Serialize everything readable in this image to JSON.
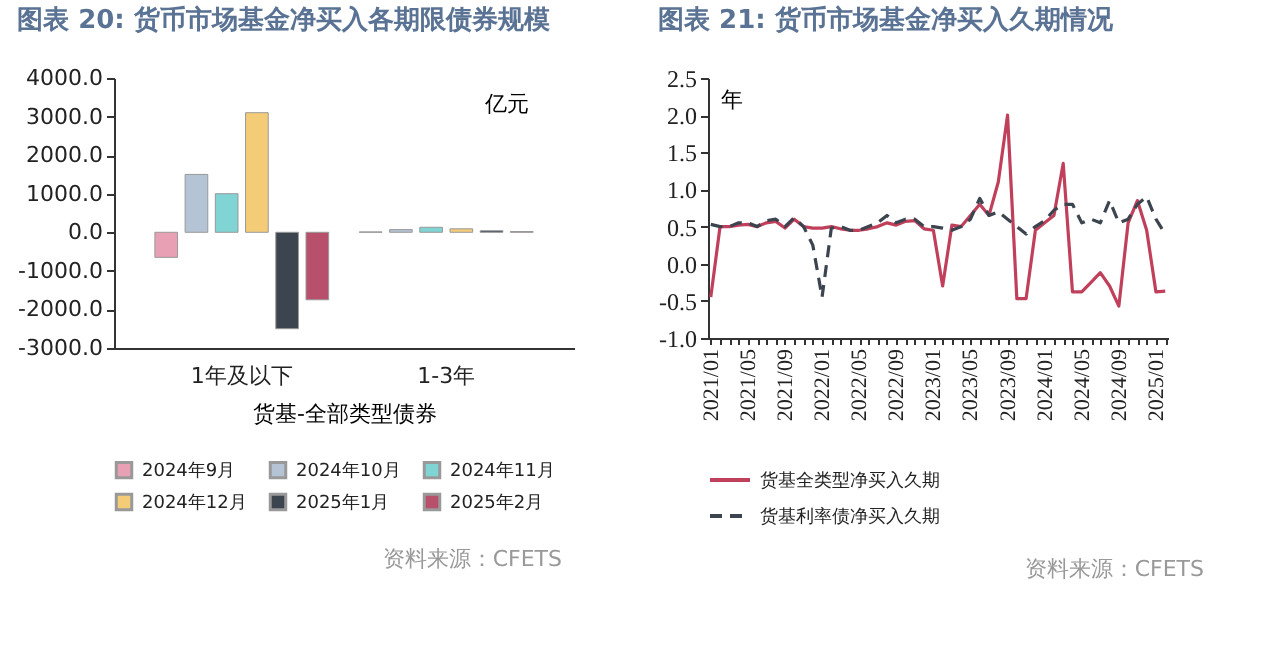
{
  "chart_data": [
    {
      "type": "bar",
      "title": "图表 20: 货币市场基金净买入各期限债券规模",
      "xlabel": "货基-全部类型债券",
      "ylabel": "亿元",
      "categories": [
        "1年及以下",
        "1-3年"
      ],
      "series": [
        {
          "name": "2024年9月",
          "color": "#e8a0b4",
          "values": [
            -650,
            10
          ]
        },
        {
          "name": "2024年10月",
          "color": "#b4c4d4",
          "values": [
            1500,
            70
          ]
        },
        {
          "name": "2024年11月",
          "color": "#80d4d4",
          "values": [
            1000,
            130
          ]
        },
        {
          "name": "2024年12月",
          "color": "#f4cc78",
          "values": [
            3100,
            90
          ]
        },
        {
          "name": "2025年1月",
          "color": "#3c4450",
          "values": [
            -2500,
            40
          ]
        },
        {
          "name": "2025年2月",
          "color": "#b8506c",
          "values": [
            -1750,
            20
          ]
        }
      ],
      "ylim": [
        -3000,
        4000
      ],
      "yticks": [
        {
          "value": -3000,
          "label": "-3000.0"
        },
        {
          "value": -2000,
          "label": "-2000.0"
        },
        {
          "value": -1000,
          "label": "-1000.0"
        },
        {
          "value": 0,
          "label": "0.0"
        },
        {
          "value": 1000,
          "label": "1000.0"
        },
        {
          "value": 2000,
          "label": "2000.0"
        },
        {
          "value": 3000,
          "label": "3000.0"
        },
        {
          "value": 4000,
          "label": "4000.0"
        }
      ],
      "legend": "bottom",
      "annotations": [
        "资料来源：CFETS"
      ]
    },
    {
      "type": "line",
      "title": "图表 21: 货币市场基金净买入久期情况",
      "ylabel": "年",
      "categories": [
        "2021/01",
        null,
        null,
        null,
        "2021/05",
        null,
        null,
        null,
        "2021/09",
        null,
        null,
        null,
        "2022/01",
        null,
        null,
        null,
        "2022/05",
        null,
        null,
        null,
        "2022/09",
        null,
        null,
        null,
        "2023/01",
        null,
        null,
        null,
        "2023/05",
        null,
        null,
        null,
        "2023/09",
        null,
        null,
        null,
        "2024/01",
        null,
        null,
        null,
        "2024/05",
        null,
        null,
        null,
        "2024/09",
        null,
        null,
        null,
        "2025/01",
        null
      ],
      "series": [
        {
          "name": "货基全类型净买入久期",
          "color": "#c0405c",
          "line_style": "solid",
          "values": [
            -0.45,
            0.5,
            0.5,
            0.52,
            0.53,
            0.5,
            0.55,
            0.57,
            0.48,
            0.6,
            0.5,
            0.48,
            0.48,
            0.5,
            0.47,
            0.45,
            0.45,
            0.47,
            0.5,
            0.55,
            0.52,
            0.57,
            0.58,
            0.47,
            0.45,
            -0.3,
            0.52,
            0.5,
            0.65,
            0.8,
            0.65,
            1.1,
            2.0,
            -0.47,
            -0.47,
            0.45,
            0.55,
            0.65,
            1.35,
            -0.38,
            -0.38,
            -0.25,
            -0.12,
            -0.3,
            -0.57,
            0.55,
            0.85,
            0.45,
            -0.38,
            -0.37
          ]
        },
        {
          "name": "货基利率债净买入久期",
          "color": "#3c4450",
          "line_style": "dashed",
          "values": [
            0.53,
            0.5,
            0.5,
            0.55,
            0.55,
            0.5,
            0.58,
            0.6,
            0.5,
            0.62,
            0.5,
            0.25,
            -0.45,
            0.48,
            0.5,
            0.45,
            0.45,
            0.5,
            0.55,
            0.65,
            0.55,
            0.6,
            0.6,
            0.5,
            0.5,
            0.48,
            0.45,
            0.5,
            0.6,
            0.88,
            0.65,
            0.7,
            0.6,
            0.5,
            0.4,
            0.5,
            0.58,
            0.72,
            0.8,
            0.8,
            0.55,
            0.6,
            0.55,
            0.85,
            0.55,
            0.6,
            0.8,
            0.9,
            0.6,
            0.4
          ]
        }
      ],
      "ylim": [
        -1,
        2.5
      ],
      "yticks": [
        {
          "value": -1,
          "label": "-1.0"
        },
        {
          "value": -0.5,
          "label": "-0.5"
        },
        {
          "value": 0,
          "label": "0.0"
        },
        {
          "value": 0.5,
          "label": "0.5"
        },
        {
          "value": 1,
          "label": "1.0"
        },
        {
          "value": 1.5,
          "label": "1.5"
        },
        {
          "value": 2,
          "label": "2.0"
        },
        {
          "value": 2.5,
          "label": "2.5"
        }
      ],
      "legend": "bottom",
      "marker": "none",
      "annotations": [
        "资料来源：CFETS"
      ]
    }
  ]
}
